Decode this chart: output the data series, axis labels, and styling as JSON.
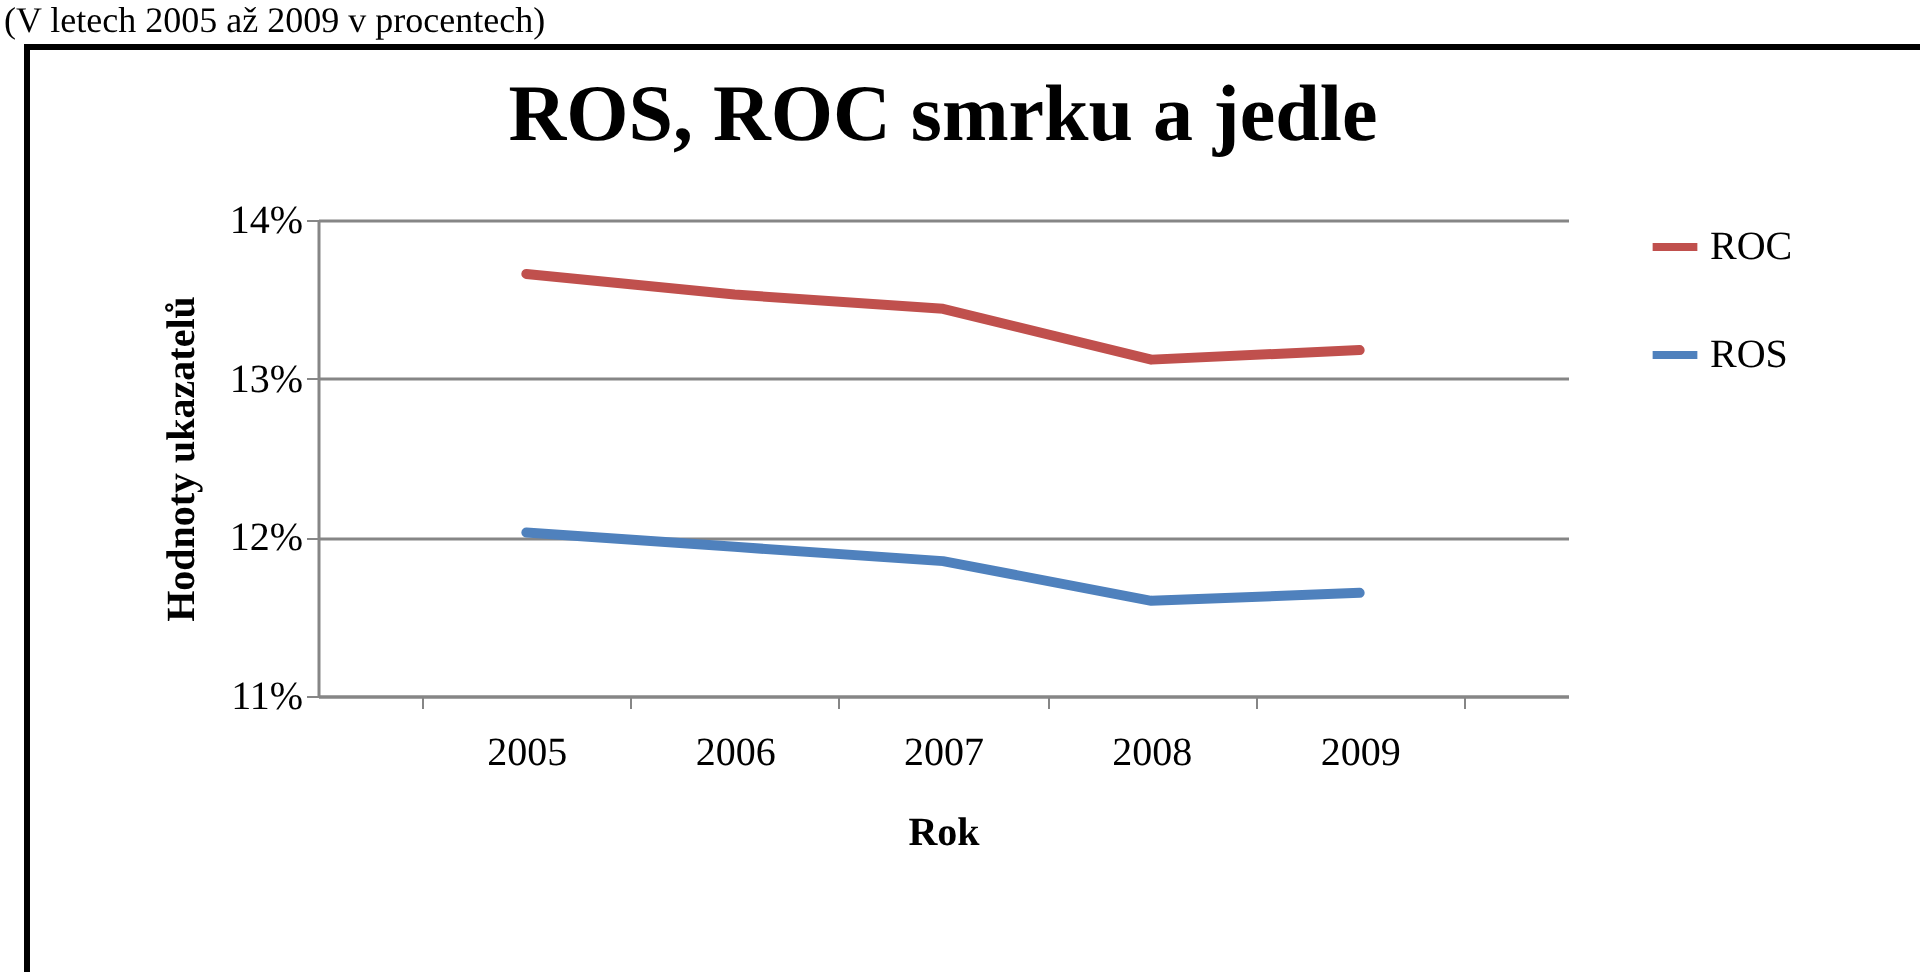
{
  "chart_data": {
    "type": "line",
    "title": "ROS, ROC smrku a jedle",
    "xlabel": "Rok",
    "ylabel": "Hodnoty ukazatelů",
    "annotations": [
      "(V letech 2005 až 2009 v procentech)"
    ],
    "categories": [
      "2005",
      "2006",
      "2007",
      "2008",
      "2009"
    ],
    "series": [
      {
        "name": "ROC",
        "color": "#c0504d",
        "values": [
          13.66,
          13.53,
          13.44,
          13.12,
          13.18
        ]
      },
      {
        "name": "ROS",
        "color": "#4f81bd",
        "values": [
          12.03,
          11.94,
          11.85,
          11.6,
          11.65
        ]
      }
    ],
    "ylim": [
      11,
      14
    ],
    "yticks": [
      {
        "value": 11,
        "label": "11%"
      },
      {
        "value": 12,
        "label": "12%"
      },
      {
        "value": 13,
        "label": "13%"
      },
      {
        "value": 14,
        "label": "14%"
      }
    ],
    "grid": "y",
    "legend": "right",
    "marker": "none",
    "line_style": "solid"
  }
}
